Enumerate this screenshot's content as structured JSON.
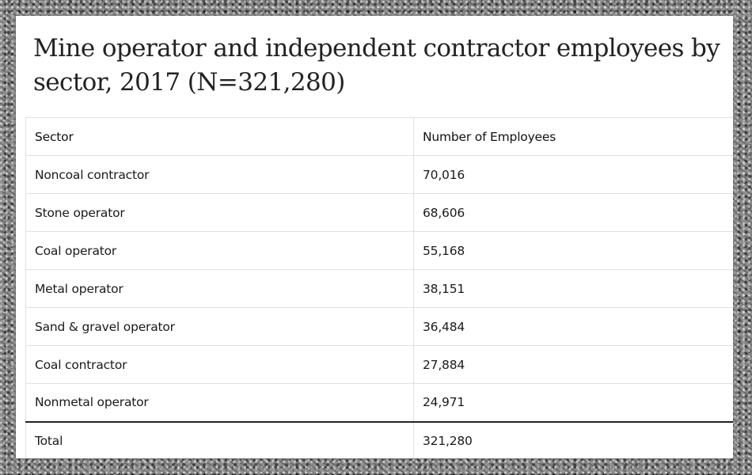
{
  "title": "Mine operator and independent contractor employees by sector, 2017 (N=321,280)",
  "table": {
    "headers": [
      "Sector",
      "Number of Employees"
    ],
    "rows": [
      [
        "Noncoal contractor",
        "70,016"
      ],
      [
        "Stone operator",
        "68,606"
      ],
      [
        "Coal operator",
        "55,168"
      ],
      [
        "Metal operator",
        "38,151"
      ],
      [
        "Sand & gravel operator",
        "36,484"
      ],
      [
        "Coal contractor",
        "27,884"
      ],
      [
        "Nonmetal operator",
        "24,971"
      ]
    ],
    "total": [
      "Total",
      "321,280"
    ]
  },
  "chart_data": {
    "type": "table",
    "title": "Mine operator and independent contractor employees by sector, 2017 (N=321,280)",
    "columns": [
      "Sector",
      "Number of Employees"
    ],
    "categories": [
      "Noncoal contractor",
      "Stone operator",
      "Coal operator",
      "Metal operator",
      "Sand & gravel operator",
      "Coal contractor",
      "Nonmetal operator"
    ],
    "values": [
      70016,
      68606,
      55168,
      38151,
      36484,
      27884,
      24971
    ],
    "total": 321280
  }
}
